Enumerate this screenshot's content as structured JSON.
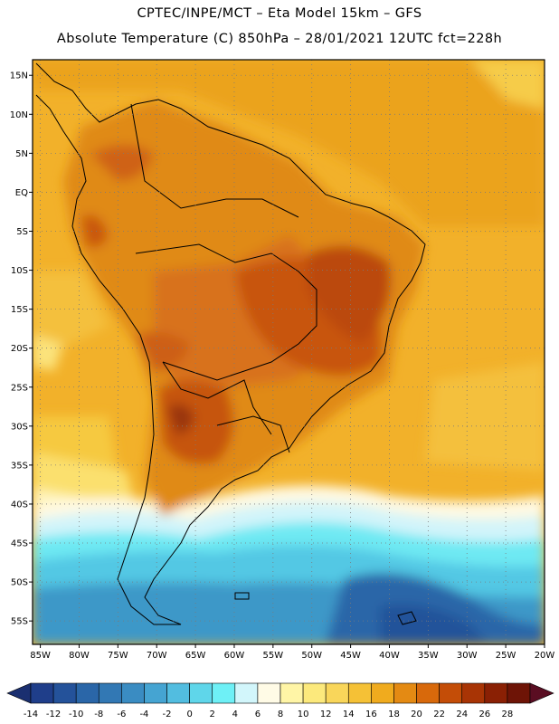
{
  "header": {
    "line1": "CPTEC/INPE/MCT –  Eta Model 15km – GFS",
    "line2": "Absolute Temperature (C) 850hPa – 28/01/2021 12UTC fct=228h"
  },
  "map": {
    "lat_labels": [
      "15N",
      "10N",
      "5N",
      "EQ",
      "5S",
      "10S",
      "15S",
      "20S",
      "25S",
      "30S",
      "35S",
      "40S",
      "45S",
      "50S",
      "55S"
    ],
    "lon_labels": [
      "85W",
      "80W",
      "75W",
      "70W",
      "65W",
      "60W",
      "55W",
      "50W",
      "45W",
      "40W",
      "35W",
      "30W",
      "25W",
      "20W"
    ],
    "lat_values": [
      15,
      10,
      5,
      0,
      -5,
      -10,
      -15,
      -20,
      -25,
      -30,
      -35,
      -40,
      -45,
      -50,
      -55
    ],
    "lon_values": [
      -85,
      -80,
      -75,
      -70,
      -65,
      -60,
      -55,
      -50,
      -45,
      -40,
      -35,
      -30,
      -25,
      -20
    ],
    "extent": {
      "lon_min": -86,
      "lon_max": -20,
      "lat_min": -58,
      "lat_max": 17
    },
    "grid": "dotted"
  },
  "colorbar": {
    "ticks": [
      "-14",
      "-12",
      "-10",
      "-8",
      "-6",
      "-4",
      "-2",
      "0",
      "2",
      "4",
      "6",
      "8",
      "10",
      "12",
      "14",
      "16",
      "18",
      "20",
      "22",
      "24",
      "26",
      "28"
    ],
    "colors": [
      "#1f3e8a",
      "#24529a",
      "#2a66a8",
      "#3278b4",
      "#3a8cc2",
      "#45a4d2",
      "#52bde0",
      "#5fd6ea",
      "#6ef0f6",
      "#d2f6fb",
      "#fffbe6",
      "#fff5a6",
      "#fce97c",
      "#f9d65a",
      "#f5c136",
      "#f0ab1e",
      "#e48a13",
      "#d8690b",
      "#c44d07",
      "#a83405",
      "#8a2004",
      "#6e1406"
    ],
    "under_color": "#1a2f70",
    "over_color": "#5a0d22"
  }
}
